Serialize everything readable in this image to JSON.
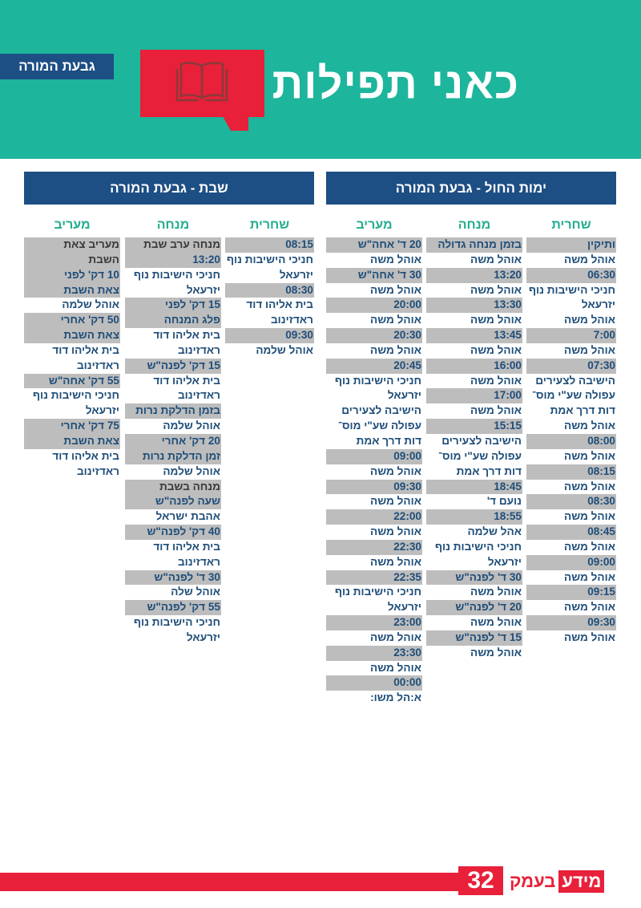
{
  "header": {
    "title": "כאני תפילות",
    "location_badge": "גבעת המורה",
    "brand_color": "#1db59c",
    "accent_color": "#e8203a",
    "icon": "open-book-icon"
  },
  "weekday": {
    "heading": "ימות החול - גבעת המורה",
    "columns": [
      {
        "title": "שחרית",
        "lines": [
          {
            "text": "ותיקין",
            "hl": true
          },
          {
            "text": "אוהל משה"
          },
          {
            "text": "06:30",
            "hl": true
          },
          {
            "text": "חניכי הישיבות נוף"
          },
          {
            "text": "יזרעאל"
          },
          {
            "text": "אוהל משה"
          },
          {
            "text": "7:00",
            "hl": true
          },
          {
            "text": "אוהל משה"
          },
          {
            "text": "07:30",
            "hl": true
          },
          {
            "text": "הישיבה לצעירים"
          },
          {
            "text": "עפולה שע\"י מוס־"
          },
          {
            "text": "דות דרך אמת"
          },
          {
            "text": "אוהל משה"
          },
          {
            "text": "08:00",
            "hl": true
          },
          {
            "text": "אוהל משה"
          },
          {
            "text": "08:15",
            "hl": true
          },
          {
            "text": "אוהל משה"
          },
          {
            "text": "08:30",
            "hl": true
          },
          {
            "text": "אוהל משה"
          },
          {
            "text": "08:45",
            "hl": true
          },
          {
            "text": "אוהל משה"
          },
          {
            "text": "09:00",
            "hl": true
          },
          {
            "text": "אוהל משה"
          },
          {
            "text": "09:15",
            "hl": true
          },
          {
            "text": "אוהל משה"
          },
          {
            "text": "09:30",
            "hl": true
          },
          {
            "text": "אוהל משה"
          }
        ]
      },
      {
        "title": "מנחה",
        "lines": [
          {
            "text": "בזמן מנחה גדולה",
            "hl": true
          },
          {
            "text": "אוהל משה"
          },
          {
            "text": "13:20",
            "hl": true
          },
          {
            "text": "אוהל משה"
          },
          {
            "text": "13:30",
            "hl": true
          },
          {
            "text": "אוהל משה"
          },
          {
            "text": "13:45",
            "hl": true
          },
          {
            "text": "אוהל משה"
          },
          {
            "text": "16:00",
            "hl": true
          },
          {
            "text": "אוהל משה"
          },
          {
            "text": "17:00",
            "hl": true
          },
          {
            "text": "אוהל משה"
          },
          {
            "text": "15:15",
            "hl": true
          },
          {
            "text": "הישיבה לצעירים"
          },
          {
            "text": "עפולה שע\"י מוס־"
          },
          {
            "text": "דות דרך אמת"
          },
          {
            "text": "18:45",
            "hl": true
          },
          {
            "text": "נועם ד'"
          },
          {
            "text": "18:55",
            "hl": true
          },
          {
            "text": "אהל שלמה"
          },
          {
            "text": "חניכי הישיבות נוף"
          },
          {
            "text": "יזרעאל"
          },
          {
            "text": "30 ד' לפנה\"ש",
            "hl": true
          },
          {
            "text": "אוהל משה"
          },
          {
            "text": "20 ד' לפנה\"ש",
            "hl": true
          },
          {
            "text": "אוהל משה"
          },
          {
            "text": "15 ד' לפנה\"ש",
            "hl": true
          },
          {
            "text": "אוהל משה"
          }
        ]
      },
      {
        "title": "מעריב",
        "lines": [
          {
            "text": "20 ד' אחה\"ש",
            "hl": true
          },
          {
            "text": "אוהל משה"
          },
          {
            "text": "30 ד' אחה\"ש",
            "hl": true
          },
          {
            "text": "אוהל משה"
          },
          {
            "text": "20:00",
            "hl": true
          },
          {
            "text": "אוהל משה"
          },
          {
            "text": "20:30",
            "hl": true
          },
          {
            "text": "אוהל משה"
          },
          {
            "text": "20:45",
            "hl": true
          },
          {
            "text": "חניכי הישיבות נוף"
          },
          {
            "text": "יזרעאל"
          },
          {
            "text": "הישיבה לצעירים"
          },
          {
            "text": "עפולה שע\"י מוס־"
          },
          {
            "text": "דות דרך אמת"
          },
          {
            "text": "09:00",
            "hl": true
          },
          {
            "text": "אוהל משה"
          },
          {
            "text": "09:30",
            "hl": true
          },
          {
            "text": "אוהל משה"
          },
          {
            "text": "22:00",
            "hl": true
          },
          {
            "text": "אוהל משה"
          },
          {
            "text": "22:30",
            "hl": true
          },
          {
            "text": "אוהל משה"
          },
          {
            "text": "22:35",
            "hl": true
          },
          {
            "text": "חניכי הישיבות נוף"
          },
          {
            "text": "יזרעאל"
          },
          {
            "text": "23:00",
            "hl": true
          },
          {
            "text": "אוהל משה"
          },
          {
            "text": "23:30",
            "hl": true
          },
          {
            "text": "אוהל משה"
          },
          {
            "text": "00:00",
            "hl": true
          },
          {
            "text": "א:הל משו:"
          }
        ]
      }
    ]
  },
  "shabbat": {
    "heading": "שבת - גבעת המורה",
    "columns": [
      {
        "title": "שחרית",
        "lines": [
          {
            "text": "08:15",
            "hl": true
          },
          {
            "text": "חניכי הישיבות נוף"
          },
          {
            "text": "יזרעאל"
          },
          {
            "text": "08:30",
            "hl": true
          },
          {
            "text": "בית אליהו דוד"
          },
          {
            "text": "ראדזינוב"
          },
          {
            "text": "09:30",
            "hl": true
          },
          {
            "text": "אוהל שלמה"
          }
        ]
      },
      {
        "title": "מנחה",
        "lines": [
          {
            "text": "מנחה ערב שבת",
            "hl": true,
            "dark": true
          },
          {
            "text": "13:20",
            "hl": true
          },
          {
            "text": "חניכי הישיבות נוף"
          },
          {
            "text": "יזרעאל"
          },
          {
            "text": "15 דק' לפני",
            "hl": true
          },
          {
            "text": "פלג המנחה",
            "hl": true
          },
          {
            "text": "בית אליהו דוד"
          },
          {
            "text": "ראדזינוב"
          },
          {
            "text": "15 דק' לפנה\"ש",
            "hl": true
          },
          {
            "text": "בית אליהו דוד"
          },
          {
            "text": "ראדזינוב"
          },
          {
            "text": "בזמן הדלקת נרות",
            "hl": true
          },
          {
            "text": "אוהל שלמה"
          },
          {
            "text": "20 דק' אחרי",
            "hl": true
          },
          {
            "text": "זמן הדלקת נרות",
            "hl": true
          },
          {
            "text": "אוהל שלמה"
          },
          {
            "text": "מנחה בשבת",
            "hl": true,
            "dark": true
          },
          {
            "text": "שעה לפנה\"ש",
            "hl": true
          },
          {
            "text": "אהבת ישראל"
          },
          {
            "text": "40 דק' לפנה\"ש",
            "hl": true
          },
          {
            "text": "בית אליהו דוד"
          },
          {
            "text": "ראדזינוב"
          },
          {
            "text": "30 ד' לפנה\"ש",
            "hl": true
          },
          {
            "text": "אוהל שלה"
          },
          {
            "text": "55 דק' לפנה\"ש",
            "hl": true
          },
          {
            "text": "חניכי הישיבות נוף"
          },
          {
            "text": "יזרעאל"
          }
        ]
      },
      {
        "title": "מעריב",
        "lines": [
          {
            "text": "מעריב צאת",
            "hl": true,
            "dark": true
          },
          {
            "text": "השבת",
            "hl": true,
            "dark": true
          },
          {
            "text": "10 דק' לפני",
            "hl": true
          },
          {
            "text": "צאת השבת",
            "hl": true
          },
          {
            "text": "אוהל שלמה"
          },
          {
            "text": "50 דק' אחרי",
            "hl": true
          },
          {
            "text": "צאת השבת",
            "hl": true
          },
          {
            "text": "בית אליהו דוד"
          },
          {
            "text": "ראדזינוב"
          },
          {
            "text": "55 דק' אחה\"ש",
            "hl": true
          },
          {
            "text": "חניכי הישיבות נוף"
          },
          {
            "text": "יזרעאל"
          },
          {
            "text": "75 דק' אחרי",
            "hl": true
          },
          {
            "text": "צאת השבת",
            "hl": true
          },
          {
            "text": "בית אליהו דוד"
          },
          {
            "text": "ראדזינוב"
          }
        ]
      }
    ]
  },
  "footer": {
    "page_number": "32",
    "logo_part1": "מידע",
    "logo_part2": "בעמק"
  }
}
